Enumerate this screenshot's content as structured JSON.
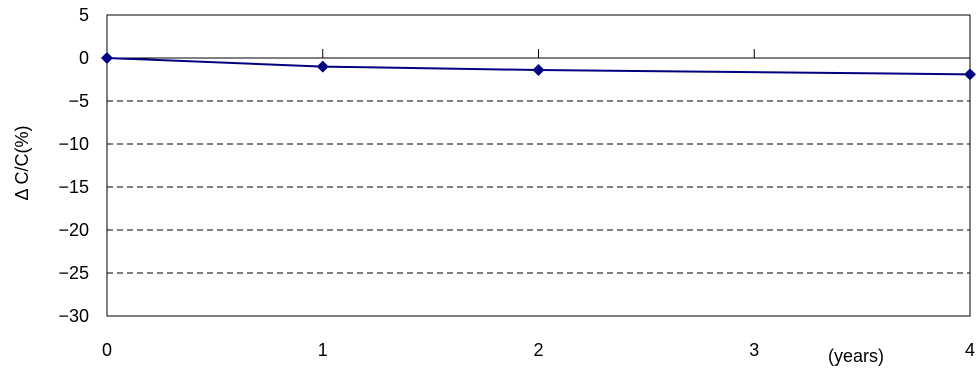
{
  "chart_data": {
    "type": "line",
    "title": "",
    "xlabel": "(years)",
    "ylabel": "Δ C/C(%)",
    "x": [
      0,
      1,
      2,
      3,
      4
    ],
    "xticks": [
      "0",
      "1",
      "2",
      "3",
      "4"
    ],
    "yticks": [
      "5",
      "0",
      "−5",
      "−10",
      "−15",
      "−20",
      "−25",
      "−30"
    ],
    "ytick_values": [
      5,
      0,
      -5,
      -10,
      -15,
      -20,
      -25,
      -30
    ],
    "xlim": [
      0,
      4
    ],
    "ylim": [
      -30,
      5
    ],
    "grid": "horizontal dashed",
    "legend": "none",
    "series": [
      {
        "x": [
          0,
          1,
          2,
          4
        ],
        "values": [
          0,
          -1,
          -1.4,
          -1.9
        ],
        "color": "#000080",
        "marker": "diamond"
      }
    ]
  }
}
